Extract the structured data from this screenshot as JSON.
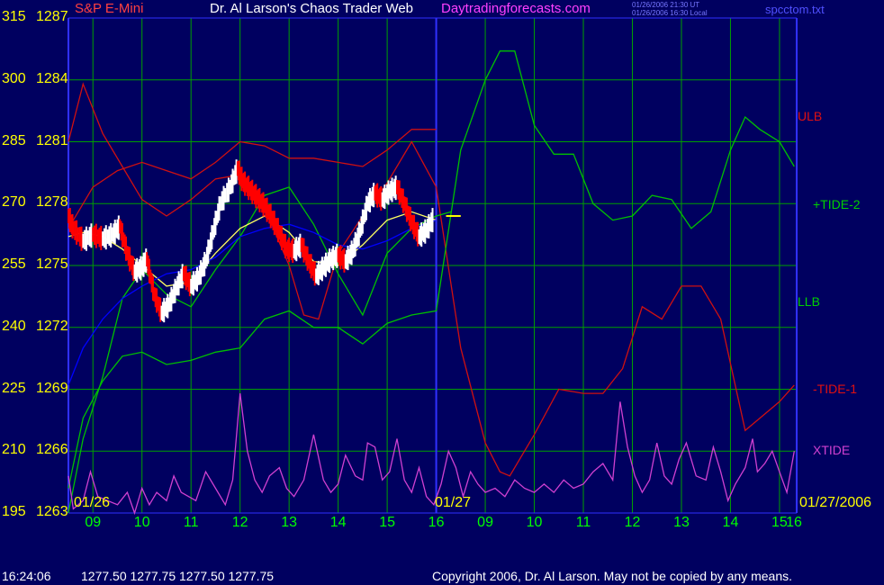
{
  "header": {
    "instrument": "S&P E-Mini",
    "title": "Dr. Al Larson's Chaos Trader Web",
    "site": "Daytradingforecasts.com",
    "stamp_ut": "01/26/2006 21:30 UT",
    "stamp_local": "01/26/2006 16:30 Local",
    "file": "spcctom.txt"
  },
  "axes": {
    "left_ticks": [
      "315",
      "300",
      "285",
      "270",
      "255",
      "240",
      "225",
      "210",
      "195"
    ],
    "price_ticks": [
      "1287",
      "1284",
      "1281",
      "1278",
      "1275",
      "1272",
      "1269",
      "1266",
      "1263"
    ],
    "hour_labels": [
      "09",
      "10",
      "11",
      "12",
      "13",
      "14",
      "15",
      "16",
      "09",
      "10",
      "11",
      "12",
      "13",
      "14",
      "15",
      "16"
    ],
    "date_left": "01/26",
    "date_mid": "01/27",
    "date_right": "01/27/2006"
  },
  "right_labels": {
    "ulb": "ULB",
    "tide2": "+TIDE-2",
    "llb": "LLB",
    "tide1": "-TIDE-1",
    "xtide": "XTIDE"
  },
  "footer": {
    "time": "16:24:06",
    "ohlc": "1277.50  1277.75  1277.50  1277.75",
    "copyright": "Copyright 2006, Dr. Al Larson. May not be copied by any means."
  },
  "colors": {
    "background": "#000060",
    "grid": "#00a000",
    "axis": "#3030ff",
    "price_up": "#ffffff",
    "price_down": "#ff0000",
    "ema": "#ffff60",
    "moving_avg": "#0000ff",
    "ulb": "#d01010",
    "llb": "#00c000",
    "tide2": "#00c000",
    "tide1": "#d01010",
    "xtide": "#d040d0",
    "today_marker": "#ffff00"
  },
  "chart_data": {
    "type": "line",
    "title": "Dr. Al Larson's Chaos Trader Web",
    "xlabel": "",
    "ylabel": "",
    "x_units": "hour of day (01/26 08:30 to 01/27 16:00)",
    "ylim_price": [
      1263,
      1287
    ],
    "ylim_index": [
      195,
      315
    ],
    "grid": true,
    "price_series": {
      "name": "S&P E-Mini",
      "points": [
        [
          8.5,
          1277.4
        ],
        [
          8.6,
          1276.8
        ],
        [
          8.8,
          1276.2
        ],
        [
          9.0,
          1276.5
        ],
        [
          9.2,
          1276.3
        ],
        [
          9.4,
          1276.5
        ],
        [
          9.55,
          1276.9
        ],
        [
          9.7,
          1275.6
        ],
        [
          9.85,
          1274.7
        ],
        [
          10.0,
          1274.9
        ],
        [
          10.1,
          1275.3
        ],
        [
          10.25,
          1273.6
        ],
        [
          10.4,
          1272.7
        ],
        [
          10.55,
          1273.1
        ],
        [
          10.7,
          1273.9
        ],
        [
          10.85,
          1274.6
        ],
        [
          11.0,
          1274.0
        ],
        [
          11.15,
          1274.4
        ],
        [
          11.3,
          1275.2
        ],
        [
          11.45,
          1276.6
        ],
        [
          11.6,
          1278.0
        ],
        [
          11.8,
          1278.8
        ],
        [
          11.95,
          1279.7
        ],
        [
          12.05,
          1279.1
        ],
        [
          12.2,
          1278.7
        ],
        [
          12.35,
          1278.3
        ],
        [
          12.5,
          1277.9
        ],
        [
          12.65,
          1277.3
        ],
        [
          12.8,
          1276.6
        ],
        [
          12.95,
          1275.8
        ],
        [
          13.1,
          1275.7
        ],
        [
          13.25,
          1276.0
        ],
        [
          13.4,
          1275.2
        ],
        [
          13.55,
          1274.5
        ],
        [
          13.7,
          1274.9
        ],
        [
          13.85,
          1275.3
        ],
        [
          14.0,
          1275.5
        ],
        [
          14.15,
          1275.2
        ],
        [
          14.3,
          1275.7
        ],
        [
          14.45,
          1276.7
        ],
        [
          14.6,
          1278.0
        ],
        [
          14.75,
          1278.5
        ],
        [
          14.9,
          1278.2
        ],
        [
          15.05,
          1278.6
        ],
        [
          15.2,
          1278.8
        ],
        [
          15.35,
          1278.0
        ],
        [
          15.5,
          1277.1
        ],
        [
          15.65,
          1276.4
        ],
        [
          15.8,
          1276.7
        ],
        [
          15.95,
          1277.3
        ]
      ]
    },
    "series": [
      {
        "name": "ULB",
        "values": [
          [
            8.5,
            285
          ],
          [
            8.8,
            299
          ],
          [
            9.2,
            287
          ],
          [
            9.6,
            279
          ],
          [
            10.0,
            271
          ],
          [
            10.5,
            267
          ],
          [
            11.0,
            271
          ],
          [
            11.5,
            276
          ],
          [
            12.0,
            277
          ],
          [
            12.5,
            269
          ],
          [
            13.0,
            255
          ],
          [
            13.3,
            243
          ],
          [
            13.6,
            242
          ],
          [
            14.0,
            258
          ],
          [
            14.5,
            267
          ],
          [
            15.0,
            275
          ],
          [
            15.5,
            285
          ],
          [
            16.0,
            274
          ],
          [
            16.5,
            235
          ],
          [
            17.0,
            212
          ],
          [
            17.3,
            205
          ],
          [
            17.5,
            204
          ],
          [
            18.0,
            214
          ],
          [
            18.5,
            225
          ],
          [
            19.0,
            224
          ],
          [
            19.4,
            224
          ],
          [
            19.8,
            230
          ],
          [
            20.2,
            245
          ],
          [
            20.6,
            242
          ],
          [
            21.0,
            250
          ],
          [
            21.4,
            250
          ],
          [
            21.8,
            242
          ],
          [
            22.3,
            215
          ],
          [
            22.6,
            218
          ],
          [
            23.0,
            222
          ],
          [
            23.3,
            226
          ]
        ]
      },
      {
        "name": "LLB",
        "values": [
          [
            8.5,
            201
          ],
          [
            8.8,
            218
          ],
          [
            9.2,
            227
          ],
          [
            9.6,
            233
          ],
          [
            10.0,
            234
          ],
          [
            10.5,
            231
          ],
          [
            11.0,
            232
          ],
          [
            11.5,
            234
          ],
          [
            12.0,
            235
          ],
          [
            12.5,
            242
          ],
          [
            13.0,
            244
          ],
          [
            13.5,
            240
          ],
          [
            14.0,
            240
          ],
          [
            14.5,
            236
          ],
          [
            15.0,
            241
          ],
          [
            15.5,
            243
          ],
          [
            16.0,
            244
          ],
          [
            16.5,
            283
          ],
          [
            17.0,
            300
          ],
          [
            17.3,
            307
          ],
          [
            17.6,
            307
          ],
          [
            18.0,
            289
          ],
          [
            18.4,
            282
          ],
          [
            18.8,
            282
          ],
          [
            19.2,
            270
          ],
          [
            19.6,
            266
          ],
          [
            20.0,
            267
          ],
          [
            20.4,
            272
          ],
          [
            20.8,
            271
          ],
          [
            21.2,
            264
          ],
          [
            21.6,
            268
          ],
          [
            22.0,
            283
          ],
          [
            22.3,
            291
          ],
          [
            22.6,
            288
          ],
          [
            23.0,
            285
          ],
          [
            23.3,
            279
          ]
        ]
      },
      {
        "name": "+TIDE-2",
        "values": [
          [
            8.5,
            195
          ],
          [
            8.8,
            213
          ],
          [
            9.2,
            228
          ],
          [
            9.6,
            247
          ],
          [
            10.0,
            254
          ],
          [
            10.5,
            248
          ],
          [
            11.0,
            245
          ],
          [
            11.5,
            254
          ],
          [
            12.0,
            262
          ],
          [
            12.5,
            272
          ],
          [
            13.0,
            274
          ],
          [
            13.5,
            265
          ],
          [
            14.0,
            253
          ],
          [
            14.5,
            243
          ],
          [
            15.0,
            258
          ],
          [
            15.5,
            264
          ],
          [
            16.0,
            267
          ],
          [
            16.3,
            268
          ]
        ]
      },
      {
        "name": "-TIDE-1",
        "values": [
          [
            8.5,
            264
          ],
          [
            9.0,
            274
          ],
          [
            9.5,
            278
          ],
          [
            10.0,
            280
          ],
          [
            10.5,
            278
          ],
          [
            11.0,
            276
          ],
          [
            11.5,
            280
          ],
          [
            12.0,
            285
          ],
          [
            12.5,
            284
          ],
          [
            13.0,
            281
          ],
          [
            13.5,
            281
          ],
          [
            14.0,
            280
          ],
          [
            14.5,
            279
          ],
          [
            15.0,
            283
          ],
          [
            15.5,
            288
          ],
          [
            16.0,
            288
          ]
        ]
      },
      {
        "name": "XTIDE",
        "values": [
          [
            8.5,
            204
          ],
          [
            8.6,
            196
          ],
          [
            8.8,
            198
          ],
          [
            8.95,
            205
          ],
          [
            9.1,
            199
          ],
          [
            9.3,
            198
          ],
          [
            9.5,
            197
          ],
          [
            9.7,
            200
          ],
          [
            9.85,
            195
          ],
          [
            10.0,
            201
          ],
          [
            10.15,
            197
          ],
          [
            10.3,
            200
          ],
          [
            10.5,
            198
          ],
          [
            10.65,
            204
          ],
          [
            10.8,
            200
          ],
          [
            10.95,
            199
          ],
          [
            11.1,
            198
          ],
          [
            11.3,
            205
          ],
          [
            11.5,
            201
          ],
          [
            11.7,
            197
          ],
          [
            11.85,
            203
          ],
          [
            12.0,
            224
          ],
          [
            12.15,
            210
          ],
          [
            12.3,
            203
          ],
          [
            12.45,
            200
          ],
          [
            12.6,
            204
          ],
          [
            12.8,
            206
          ],
          [
            12.95,
            201
          ],
          [
            13.1,
            199
          ],
          [
            13.3,
            203
          ],
          [
            13.5,
            214
          ],
          [
            13.7,
            203
          ],
          [
            13.85,
            200
          ],
          [
            14.0,
            202
          ],
          [
            14.15,
            209
          ],
          [
            14.35,
            204
          ],
          [
            14.5,
            203
          ],
          [
            14.6,
            212
          ],
          [
            14.75,
            211
          ],
          [
            14.9,
            203
          ],
          [
            15.05,
            205
          ],
          [
            15.2,
            213
          ],
          [
            15.35,
            203
          ],
          [
            15.5,
            200
          ],
          [
            15.65,
            206
          ],
          [
            15.8,
            199
          ],
          [
            15.95,
            197
          ],
          [
            16.1,
            202
          ],
          [
            16.25,
            210
          ],
          [
            16.4,
            206
          ],
          [
            16.55,
            199
          ],
          [
            16.7,
            205
          ],
          [
            16.85,
            202
          ],
          [
            17.0,
            200
          ],
          [
            17.2,
            201
          ],
          [
            17.4,
            199
          ],
          [
            17.6,
            203
          ],
          [
            17.8,
            201
          ],
          [
            18.0,
            200
          ],
          [
            18.2,
            202
          ],
          [
            18.4,
            200
          ],
          [
            18.6,
            203
          ],
          [
            18.8,
            201
          ],
          [
            19.0,
            202
          ],
          [
            19.2,
            205
          ],
          [
            19.4,
            207
          ],
          [
            19.6,
            203
          ],
          [
            19.75,
            222
          ],
          [
            19.9,
            211
          ],
          [
            20.05,
            204
          ],
          [
            20.2,
            200
          ],
          [
            20.35,
            203
          ],
          [
            20.5,
            212
          ],
          [
            20.65,
            204
          ],
          [
            20.8,
            202
          ],
          [
            20.95,
            208
          ],
          [
            21.1,
            212
          ],
          [
            21.3,
            204
          ],
          [
            21.5,
            203
          ],
          [
            21.65,
            211
          ],
          [
            21.8,
            205
          ],
          [
            21.95,
            198
          ],
          [
            22.1,
            202
          ],
          [
            22.3,
            206
          ],
          [
            22.45,
            213
          ],
          [
            22.55,
            205
          ],
          [
            22.7,
            207
          ],
          [
            22.85,
            210
          ],
          [
            23.0,
            205
          ],
          [
            23.15,
            200
          ],
          [
            23.3,
            210
          ]
        ]
      },
      {
        "name": "EMA",
        "values": [
          [
            8.5,
            262
          ],
          [
            8.8,
            263
          ],
          [
            9.2,
            262
          ],
          [
            9.6,
            259
          ],
          [
            10.0,
            255
          ],
          [
            10.5,
            250
          ],
          [
            11.0,
            251
          ],
          [
            11.5,
            258
          ],
          [
            12.0,
            264
          ],
          [
            12.5,
            267
          ],
          [
            13.0,
            263
          ],
          [
            13.5,
            256
          ],
          [
            14.0,
            255
          ],
          [
            14.5,
            260
          ],
          [
            15.0,
            266
          ],
          [
            15.5,
            268
          ],
          [
            16.0,
            266
          ]
        ]
      },
      {
        "name": "Moving average",
        "values": [
          [
            8.5,
            226
          ],
          [
            8.8,
            235
          ],
          [
            9.2,
            242
          ],
          [
            9.6,
            247
          ],
          [
            10.0,
            250
          ],
          [
            10.5,
            253
          ],
          [
            11.0,
            254
          ],
          [
            11.5,
            257
          ],
          [
            12.0,
            262
          ],
          [
            12.5,
            264
          ],
          [
            13.0,
            265
          ],
          [
            13.5,
            263
          ],
          [
            14.0,
            260
          ],
          [
            14.5,
            259
          ],
          [
            15.0,
            261
          ],
          [
            15.5,
            264
          ],
          [
            16.0,
            266
          ]
        ]
      }
    ],
    "today_open_marker": {
      "x_start": 16.2,
      "x_end": 16.5,
      "y": 267
    }
  }
}
